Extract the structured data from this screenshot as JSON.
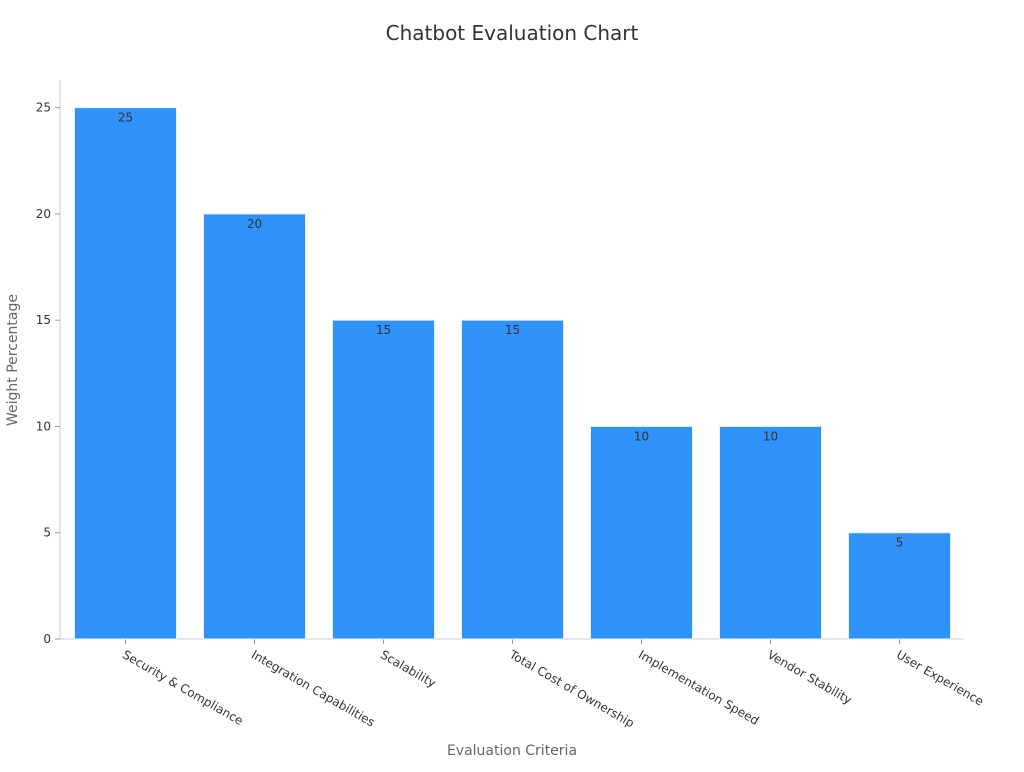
{
  "chart_data": {
    "type": "bar",
    "title": "Chatbot Evaluation Chart",
    "xlabel": "Evaluation Criteria",
    "ylabel": "Weight Percentage",
    "categories": [
      "Security & Compliance",
      "Integration Capabilities",
      "Scalability",
      "Total Cost of Ownership",
      "Implementation Speed",
      "Vendor Stability",
      "User Experience"
    ],
    "values": [
      25,
      20,
      15,
      15,
      10,
      10,
      5
    ],
    "data_labels": [
      "25",
      "20",
      "15",
      "15",
      "10",
      "10",
      "5"
    ],
    "ylim": [
      0,
      26.3
    ],
    "yticks": [
      0,
      5,
      10,
      15,
      20,
      25
    ],
    "ytick_labels": [
      "0",
      "5",
      "10",
      "15",
      "20",
      "25"
    ],
    "bar_color": "#2f92f8",
    "grid": false,
    "legend": "none"
  }
}
